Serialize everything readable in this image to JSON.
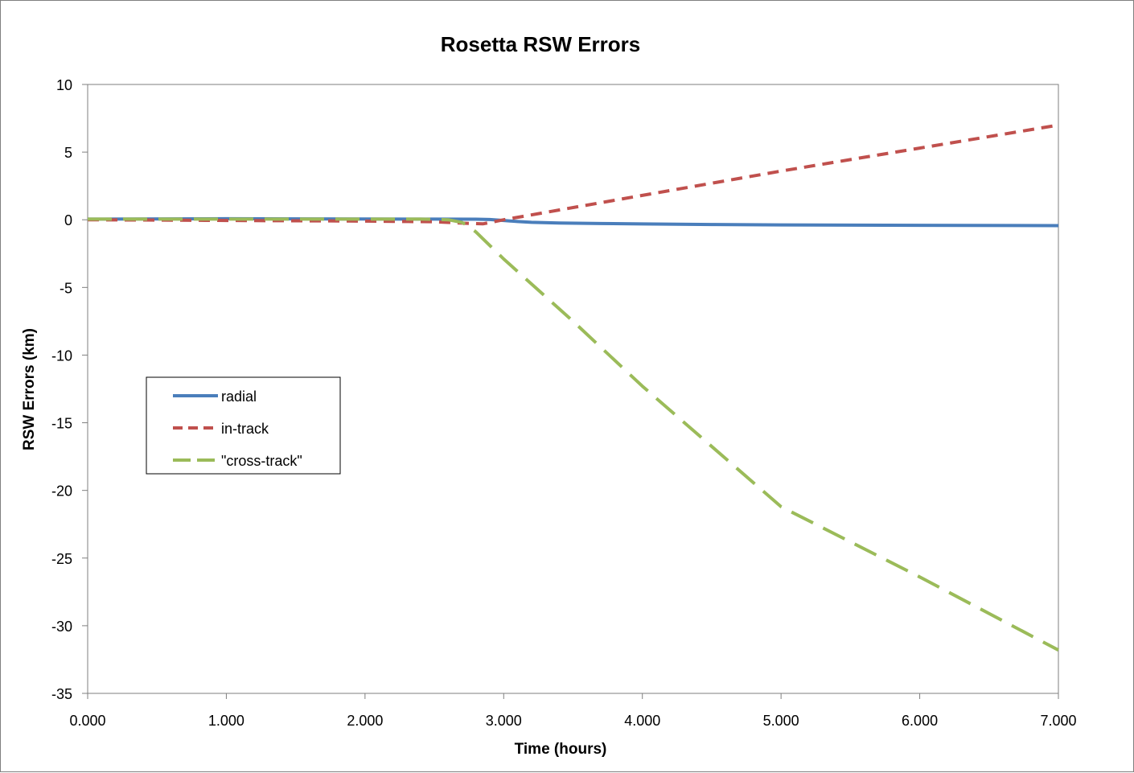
{
  "chart_data": {
    "type": "line",
    "title": "Rosetta RSW Errors",
    "xlabel": "Time (hours)",
    "ylabel": "RSW Errors (km)",
    "xlim": [
      0,
      7
    ],
    "ylim": [
      -35,
      10
    ],
    "x_ticks": [
      "0.000",
      "1.000",
      "2.000",
      "3.000",
      "4.000",
      "5.000",
      "6.000",
      "7.000"
    ],
    "y_ticks": [
      "10",
      "5",
      "0",
      "-5",
      "-10",
      "-15",
      "-20",
      "-25",
      "-30",
      "-35"
    ],
    "grid": false,
    "legend_position": "left",
    "series": [
      {
        "name": "radial",
        "color": "#4a7ebb",
        "style": "solid",
        "x": [
          0,
          1,
          2,
          2.5,
          2.8,
          2.9,
          3.0,
          3.1,
          3.2,
          3.4,
          3.7,
          4.0,
          4.5,
          5.0,
          6.0,
          7.0
        ],
        "y": [
          0.05,
          0.08,
          0.06,
          0.05,
          0.04,
          0.02,
          -0.05,
          -0.13,
          -0.19,
          -0.24,
          -0.28,
          -0.31,
          -0.35,
          -0.38,
          -0.41,
          -0.43
        ]
      },
      {
        "name": "in-track",
        "color": "#c0504d",
        "style": "dashed",
        "x": [
          0,
          1,
          2,
          2.5,
          2.7,
          2.85,
          2.95,
          3.0,
          4.0,
          5.0,
          6.0,
          7.0
        ],
        "y": [
          0.0,
          -0.05,
          -0.1,
          -0.15,
          -0.25,
          -0.3,
          -0.1,
          0.0,
          1.8,
          3.6,
          5.3,
          7.0
        ]
      },
      {
        "name": "\"cross-track\"",
        "color": "#9bbb59",
        "style": "longdash",
        "x": [
          0,
          1,
          2,
          2.4,
          2.6,
          2.7,
          2.75,
          2.8,
          2.85,
          2.9,
          3.0,
          3.5,
          4.0,
          5.0,
          6.0,
          7.0
        ],
        "y": [
          0.05,
          0.05,
          0.05,
          0.05,
          0.0,
          -0.2,
          -0.5,
          -0.9,
          -1.4,
          -1.9,
          -2.9,
          -7.5,
          -12.3,
          -21.2,
          -26.4,
          -31.8
        ]
      }
    ]
  }
}
